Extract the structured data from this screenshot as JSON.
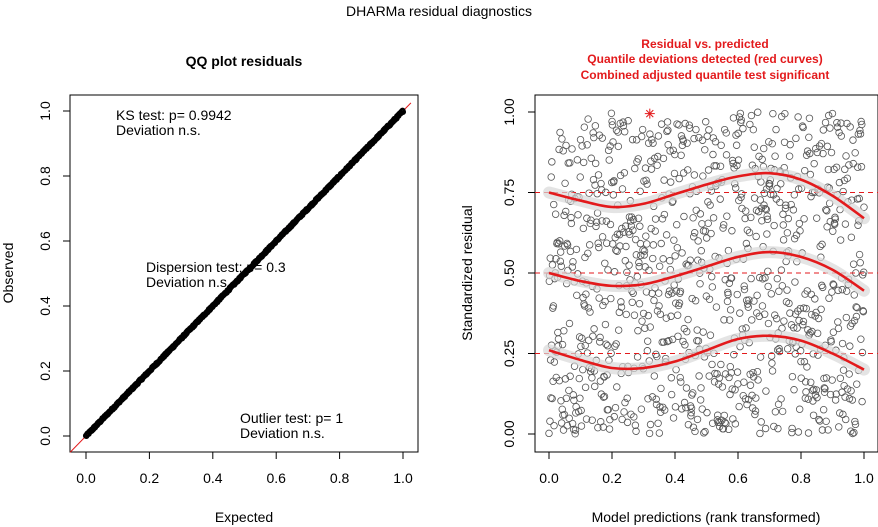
{
  "figure_title": "DHARMa residual diagnostics",
  "chart_data": [
    {
      "type": "line",
      "title": "QQ plot residuals",
      "xlabel": "Expected",
      "ylabel": "Observed",
      "xlim": [
        0,
        1
      ],
      "ylim": [
        0,
        1
      ],
      "xticks": [
        "0.0",
        "0.2",
        "0.4",
        "0.6",
        "0.8",
        "1.0"
      ],
      "yticks": [
        "0.0",
        "0.2",
        "0.4",
        "0.6",
        "0.8",
        "1.0"
      ],
      "series": [
        {
          "x": [
            0.0,
            0.1,
            0.2,
            0.3,
            0.4,
            0.5,
            0.6,
            0.7,
            0.8,
            0.9,
            1.0
          ],
          "y": [
            0.0,
            0.1,
            0.2,
            0.3,
            0.4,
            0.5,
            0.6,
            0.7,
            0.8,
            0.9,
            1.0
          ]
        }
      ],
      "reference_line": {
        "slope": 1,
        "intercept": 0,
        "color": "#e31a1c"
      },
      "annotations": [
        {
          "x": 0.09,
          "lines": [
            "KS test: p= 0.9942",
            "Deviation  n.s."
          ]
        },
        {
          "x": 0.18,
          "lines": [
            "Dispersion test: p= 0.3",
            "Deviation  n.s."
          ]
        },
        {
          "x": 0.49,
          "lines": [
            "Outlier test: p= 1",
            "Deviation  n.s."
          ]
        }
      ]
    },
    {
      "type": "scatter",
      "title_lines": [
        "Residual vs. predicted",
        "Quantile deviations detected (red curves)",
        "Combined adjusted quantile test significant"
      ],
      "title_color": "#e31a1c",
      "xlabel": "Model predictions (rank transformed)",
      "ylabel": "Standardized residual",
      "xlim": [
        0,
        1
      ],
      "ylim": [
        0,
        1
      ],
      "xticks": [
        "0.0",
        "0.2",
        "0.4",
        "0.6",
        "0.8",
        "1.0"
      ],
      "yticks": [
        "0.00",
        "0.25",
        "0.50",
        "0.75",
        "1.00"
      ],
      "n_points": 1000,
      "outlier": {
        "x": 0.32,
        "y": 0.995
      },
      "reference_lines": [
        0.25,
        0.5,
        0.75
      ],
      "quantile_curves": [
        {
          "quantile": 0.25,
          "x": [
            0.0,
            0.1,
            0.2,
            0.3,
            0.4,
            0.5,
            0.6,
            0.7,
            0.8,
            0.9,
            1.0
          ],
          "y": [
            0.26,
            0.23,
            0.205,
            0.205,
            0.225,
            0.26,
            0.295,
            0.305,
            0.29,
            0.25,
            0.2
          ]
        },
        {
          "quantile": 0.5,
          "x": [
            0.0,
            0.1,
            0.2,
            0.3,
            0.4,
            0.5,
            0.6,
            0.7,
            0.8,
            0.9,
            1.0
          ],
          "y": [
            0.5,
            0.475,
            0.46,
            0.465,
            0.49,
            0.52,
            0.55,
            0.565,
            0.55,
            0.51,
            0.445
          ]
        },
        {
          "quantile": 0.75,
          "x": [
            0.0,
            0.1,
            0.2,
            0.3,
            0.4,
            0.5,
            0.6,
            0.7,
            0.8,
            0.9,
            1.0
          ],
          "y": [
            0.75,
            0.725,
            0.705,
            0.715,
            0.745,
            0.775,
            0.8,
            0.81,
            0.79,
            0.74,
            0.67
          ]
        }
      ],
      "curve_color": "#e31a1c"
    }
  ]
}
